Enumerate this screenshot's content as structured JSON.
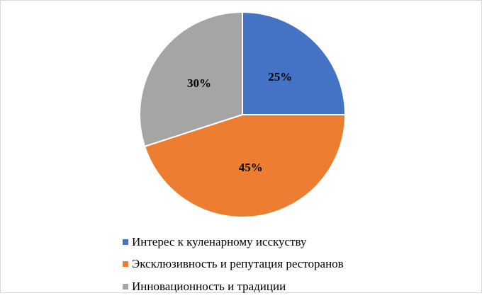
{
  "chart_data": {
    "type": "pie",
    "title": "",
    "start_angle_deg": 0,
    "direction": "clockwise",
    "legend_position": "bottom",
    "slices": [
      {
        "label": "Интерес к куленарному исскуству",
        "value": 25,
        "display": "25%",
        "color": "#4472c4"
      },
      {
        "label": "Эксклюзивность и репутация ресторанов",
        "value": 45,
        "display": "45%",
        "color": "#ed7d31"
      },
      {
        "label": "Инновационность и традиции",
        "value": 30,
        "display": "30%",
        "color": "#a5a5a5"
      }
    ]
  }
}
